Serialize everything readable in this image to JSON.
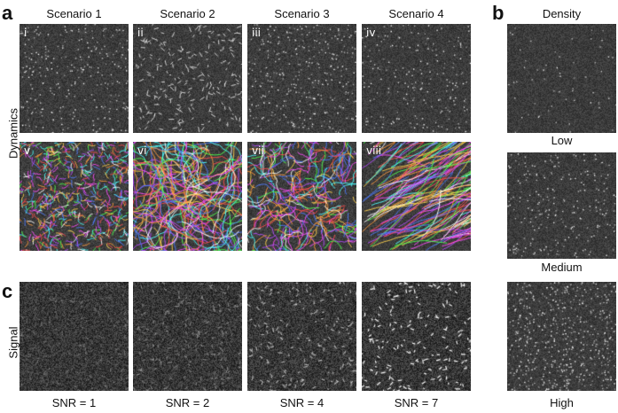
{
  "panels": {
    "a": "a",
    "b": "b",
    "c": "c"
  },
  "scenario_headers": [
    "Scenario 1",
    "Scenario 2",
    "Scenario 3",
    "Scenario 4"
  ],
  "density_header": "Density",
  "row_label_dynamics": "Dynamics",
  "row_label_signal": "Signal",
  "roman_top": [
    "i",
    "ii",
    "iii",
    "iv"
  ],
  "roman_bottom": [
    "v",
    "vi",
    "vii",
    "viii"
  ],
  "density_levels": [
    "Low",
    "Medium",
    "High"
  ],
  "snr_labels": [
    "SNR = 1",
    "SNR = 2",
    "SNR = 4",
    "SNR = 7"
  ]
}
